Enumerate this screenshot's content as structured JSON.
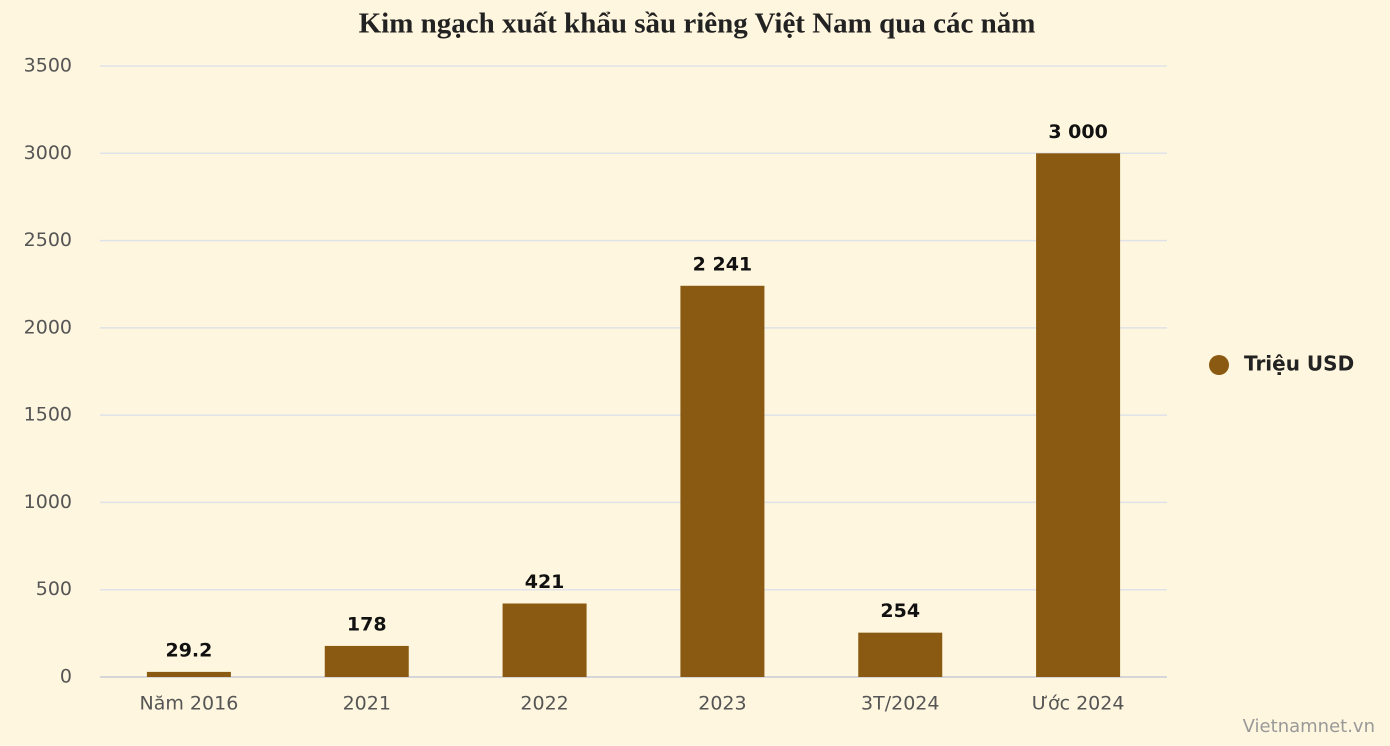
{
  "chart_data": {
    "type": "bar",
    "title": "Kim ngạch xuất khẩu sầu riêng Việt Nam qua các năm",
    "categories": [
      "Năm 2016",
      "2021",
      "2022",
      "2023",
      "3T/2024",
      "Ước 2024"
    ],
    "series": [
      {
        "name": "Triệu USD",
        "color": "#8b5a12",
        "values": [
          29.2,
          178,
          421,
          2241,
          254,
          3000
        ],
        "value_labels": [
          "29.2",
          "178",
          "421",
          "2 241",
          "254",
          "3 000"
        ]
      }
    ],
    "ylim": [
      0,
      3500
    ],
    "yticks": [
      0,
      500,
      1000,
      1500,
      2000,
      2500,
      3000,
      3500
    ],
    "grid": true,
    "legend": "right",
    "source": "Vietnamnet.vn"
  }
}
